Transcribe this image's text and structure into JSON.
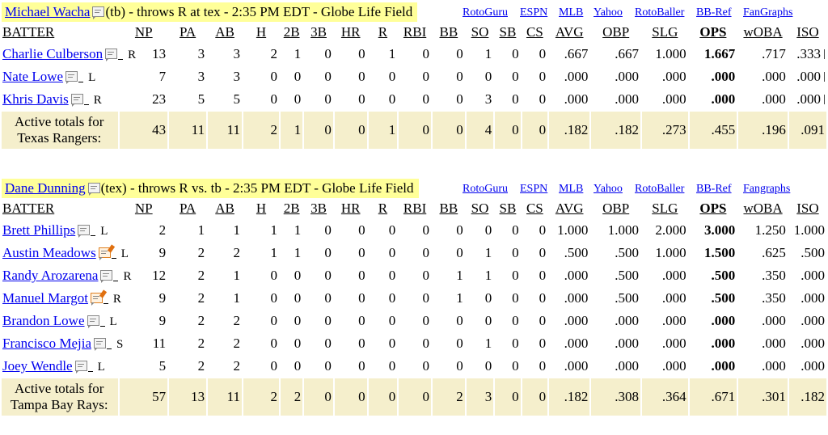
{
  "columns": [
    "BATTER",
    "NP",
    "PA",
    "AB",
    "H",
    "2B",
    "3B",
    "HR",
    "R",
    "RBI",
    "BB",
    "SO",
    "SB",
    "CS",
    "AVG",
    "OBP",
    "SLG",
    "OPS",
    "wOBA",
    "ISO"
  ],
  "games": [
    {
      "pitcher_name": "Michael Wacha",
      "pitcher_info": "(tb) - throws R at tex - 2:35 PM EDT - Globe Life Field",
      "links": [
        "RotoGuru",
        "ESPN",
        "MLB",
        "Yahoo",
        "RotoBaller",
        "BB-Ref",
        "FanGraphs"
      ],
      "batters": [
        {
          "name": "Charlie Culberson",
          "note_active": false,
          "hand": "R",
          "stats": [
            "13",
            "3",
            "3",
            "2",
            "1",
            "0",
            "0",
            "1",
            "0",
            "0",
            "1",
            "0",
            "0",
            ".667",
            ".667",
            "1.000",
            "1.667",
            ".717",
            ".333"
          ],
          "trail": true
        },
        {
          "name": "Nate Lowe",
          "note_active": false,
          "hand": "L",
          "stats": [
            "7",
            "3",
            "3",
            "0",
            "0",
            "0",
            "0",
            "0",
            "0",
            "0",
            "0",
            "0",
            "0",
            ".000",
            ".000",
            ".000",
            ".000",
            ".000",
            ".000"
          ],
          "trail": true
        },
        {
          "name": "Khris Davis",
          "note_active": false,
          "hand": "R",
          "stats": [
            "23",
            "5",
            "5",
            "0",
            "0",
            "0",
            "0",
            "0",
            "0",
            "0",
            "3",
            "0",
            "0",
            ".000",
            ".000",
            ".000",
            ".000",
            ".000",
            ".000"
          ],
          "trail": true
        }
      ],
      "totals_label_1": "Active totals for",
      "totals_label_2": "Texas Rangers:",
      "totals": [
        "43",
        "11",
        "11",
        "2",
        "1",
        "0",
        "0",
        "1",
        "0",
        "0",
        "4",
        "0",
        "0",
        ".182",
        ".182",
        ".273",
        ".455",
        ".196",
        ".091"
      ]
    },
    {
      "pitcher_name": "Dane Dunning",
      "pitcher_info": "(tex) - throws R vs. tb - 2:35 PM EDT - Globe Life Field",
      "links": [
        "RotoGuru",
        "ESPN",
        "MLB",
        "Yahoo",
        "RotoBaller",
        "BB-Ref",
        "Fangraphs"
      ],
      "batters": [
        {
          "name": "Brett Phillips",
          "note_active": false,
          "hand": "L",
          "stats": [
            "2",
            "1",
            "1",
            "1",
            "1",
            "0",
            "0",
            "0",
            "0",
            "0",
            "0",
            "0",
            "0",
            "1.000",
            "1.000",
            "2.000",
            "3.000",
            "1.250",
            "1.000"
          ],
          "trail": false
        },
        {
          "name": "Austin Meadows",
          "note_active": true,
          "hand": "L",
          "stats": [
            "9",
            "2",
            "2",
            "1",
            "1",
            "0",
            "0",
            "0",
            "0",
            "0",
            "1",
            "0",
            "0",
            ".500",
            ".500",
            "1.000",
            "1.500",
            ".625",
            ".500"
          ],
          "trail": false
        },
        {
          "name": "Randy Arozarena",
          "note_active": false,
          "hand": "R",
          "stats": [
            "12",
            "2",
            "1",
            "0",
            "0",
            "0",
            "0",
            "0",
            "0",
            "1",
            "1",
            "0",
            "0",
            ".000",
            ".500",
            ".000",
            ".500",
            ".350",
            ".000"
          ],
          "trail": false
        },
        {
          "name": "Manuel Margot",
          "note_active": true,
          "hand": "R",
          "stats": [
            "9",
            "2",
            "1",
            "0",
            "0",
            "0",
            "0",
            "0",
            "0",
            "1",
            "0",
            "0",
            "0",
            ".000",
            ".500",
            ".000",
            ".500",
            ".350",
            ".000"
          ],
          "trail": false
        },
        {
          "name": "Brandon Lowe",
          "note_active": false,
          "hand": "L",
          "stats": [
            "9",
            "2",
            "2",
            "0",
            "0",
            "0",
            "0",
            "0",
            "0",
            "0",
            "0",
            "0",
            "0",
            ".000",
            ".000",
            ".000",
            ".000",
            ".000",
            ".000"
          ],
          "trail": false
        },
        {
          "name": "Francisco Mejia",
          "note_active": false,
          "hand": "S",
          "stats": [
            "11",
            "2",
            "2",
            "0",
            "0",
            "0",
            "0",
            "0",
            "0",
            "0",
            "1",
            "0",
            "0",
            ".000",
            ".000",
            ".000",
            ".000",
            ".000",
            ".000"
          ],
          "trail": false
        },
        {
          "name": "Joey Wendle",
          "note_active": false,
          "hand": "L",
          "stats": [
            "5",
            "2",
            "2",
            "0",
            "0",
            "0",
            "0",
            "0",
            "0",
            "0",
            "0",
            "0",
            "0",
            ".000",
            ".000",
            ".000",
            ".000",
            ".000",
            ".000"
          ],
          "trail": false
        }
      ],
      "totals_label_1": "Active totals for",
      "totals_label_2": "Tampa Bay Rays:",
      "totals": [
        "57",
        "13",
        "11",
        "2",
        "2",
        "0",
        "0",
        "0",
        "0",
        "2",
        "3",
        "0",
        "0",
        ".182",
        ".308",
        ".364",
        ".671",
        ".301",
        ".182"
      ]
    }
  ]
}
